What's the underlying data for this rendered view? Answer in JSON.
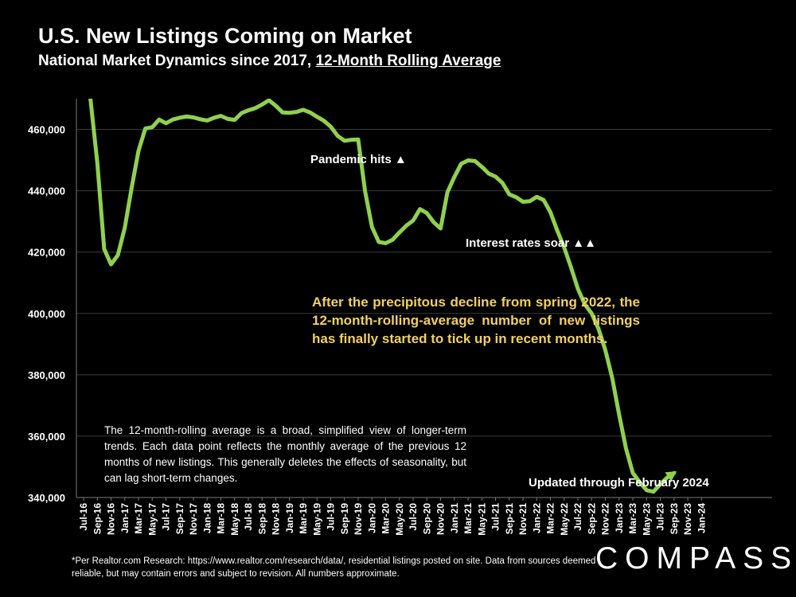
{
  "title": "U.S. New Listings Coming on Market",
  "subtitle_main": "National Market Dynamics since 2017,",
  "subtitle_underlined": "12-Month Rolling Average",
  "annotations": {
    "pandemic": "Pandemic hits ▲",
    "rates": "Interest rates soar ▲▲",
    "updated": "Updated through February 2024"
  },
  "yellow_note": "After the precipitous decline from spring 2022, the 12-month-rolling-average number of new listings has finally started to tick up in recent months.",
  "white_note": "The 12-month-rolling average is a broad, simplified view of longer-term trends. Each data point reflects the monthly average of the previous 12 months of new listings. This generally deletes the effects of seasonality, but can lag short-term changes.",
  "footnote": "*Per Realtor.com Research:  https://www.realtor.com/research/data/, residential listings posted on site. Data from sources deemed reliable, but may contain errors and subject to revision. All numbers approximate.",
  "logo": "COMPASS",
  "colors": {
    "line": "#8fd14f",
    "note": "#f2d060",
    "grid": "#3a3a3a",
    "background": "#000000"
  },
  "chart_data": {
    "type": "line",
    "ylim": [
      340000,
      470000
    ],
    "yticks": [
      "340,000",
      "360,000",
      "380,000",
      "400,000",
      "420,000",
      "440,000",
      "460,000"
    ],
    "ytick_values": [
      340000,
      360000,
      380000,
      400000,
      420000,
      440000,
      460000
    ],
    "xtick_labels": [
      "Jul-16",
      "Sep-16",
      "Nov-16",
      "Jan-17",
      "Mar-17",
      "May-17",
      "Jul-17",
      "Sep-17",
      "Nov-17",
      "Jan-18",
      "Mar-18",
      "May-18",
      "Jul-18",
      "Sep-18",
      "Nov-18",
      "Jan-19",
      "Mar-19",
      "May-19",
      "Jul-19",
      "Sep-19",
      "Nov-19",
      "Jan-20",
      "Mar-20",
      "May-20",
      "Jul-20",
      "Sep-20",
      "Nov-20",
      "Jan-21",
      "Mar-21",
      "May-21",
      "Jul-21",
      "Sep-21",
      "Nov-21",
      "Jan-22",
      "Mar-22",
      "May-22",
      "Jul-22",
      "Sep-22",
      "Nov-22",
      "Jan-23",
      "Mar-23",
      "May-23",
      "Jul-23",
      "Sep-23",
      "Nov-23",
      "Jan-24"
    ],
    "start_month": "Aug-16",
    "series": [
      {
        "values": [
          470000,
          449000,
          421000,
          416000,
          419000,
          428000,
          441000,
          453000,
          460300,
          460700,
          463200,
          462000,
          463200,
          463800,
          464200,
          463900,
          463300,
          462900,
          463800,
          464400,
          463400,
          463100,
          465300,
          466200,
          466900,
          468100,
          469500,
          467700,
          465500,
          465400,
          465700,
          466400,
          465500,
          464100,
          462800,
          460900,
          457900,
          456300,
          456600,
          456700,
          439900,
          428200,
          423300,
          422900,
          424000,
          426400,
          428600,
          430300,
          434000,
          432700,
          429700,
          427700,
          439500,
          444500,
          448800,
          449900,
          449700,
          447800,
          445600,
          444600,
          442600,
          438800,
          437900,
          436400,
          436600,
          438000,
          437000,
          433000,
          427000,
          421500,
          415000,
          408000,
          403000,
          400000,
          395000,
          388000,
          379000,
          367000,
          356000,
          348000,
          345000,
          342400,
          341900,
          344300,
          346500,
          348000
        ]
      }
    ]
  }
}
